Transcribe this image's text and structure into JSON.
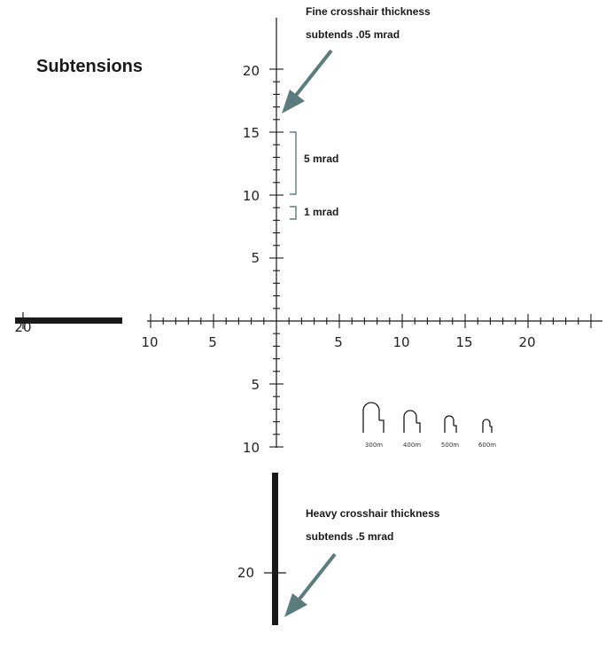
{
  "title": "Subtensions",
  "callouts": {
    "fine": {
      "line1": "Fine crosshair thickness",
      "line2": "subtends .05 mrad"
    },
    "heavy": {
      "line1": "Heavy crosshair thickness",
      "line2": "subtends .5 mrad"
    }
  },
  "brackets": {
    "five": "5 mrad",
    "one": "1 mrad"
  },
  "vertical_up_labels": [
    "5",
    "10",
    "15",
    "20"
  ],
  "vertical_down_labels": [
    "5",
    "10"
  ],
  "horizontal_left_labels": [
    "5",
    "10"
  ],
  "horizontal_right_labels": [
    "5",
    "10",
    "15",
    "20"
  ],
  "far_left_label": "20",
  "lower_post_label": "20",
  "range_marks": [
    "300m",
    "400m",
    "500m",
    "600m"
  ],
  "colors": {
    "line": "#1a1a1a",
    "heavy": "#1a1a1a",
    "accent": "#5a7c7c"
  }
}
